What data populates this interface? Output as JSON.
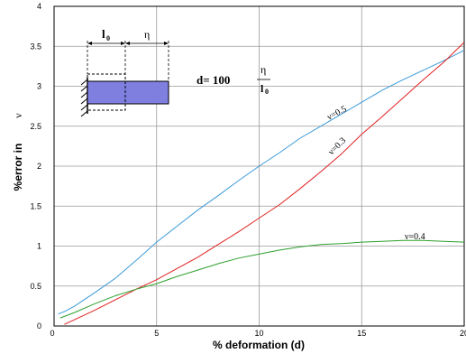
{
  "chart_data": {
    "type": "line",
    "xlabel": "% deformation (d)",
    "ylabel": "%error in",
    "ylabel_symbol": "ν",
    "xlim": [
      0,
      20
    ],
    "ylim": [
      0,
      4
    ],
    "x_ticks": [
      "0",
      "5",
      "10",
      "15",
      "20"
    ],
    "y_ticks": [
      "0",
      "0.5",
      "1",
      "1.5",
      "2",
      "2.5",
      "3",
      "3.5",
      "4"
    ],
    "grid": true,
    "series": [
      {
        "name": "ν=0.5",
        "color": "#3a9ad9",
        "x": [
          0.2,
          0.5,
          1,
          2,
          3,
          4,
          5,
          6,
          7,
          8,
          9,
          10,
          11,
          12,
          13,
          14,
          15,
          16,
          17,
          18,
          19,
          20
        ],
        "y": [
          0.15,
          0.18,
          0.25,
          0.42,
          0.6,
          0.82,
          1.05,
          1.25,
          1.45,
          1.63,
          1.82,
          2.0,
          2.17,
          2.35,
          2.5,
          2.65,
          2.8,
          2.95,
          3.08,
          3.2,
          3.32,
          3.45
        ]
      },
      {
        "name": "ν=0.3",
        "color": "#e02020",
        "x": [
          0.5,
          1,
          2,
          3,
          4,
          5,
          6,
          7,
          8,
          9,
          10,
          11,
          12,
          13,
          14,
          15,
          16,
          17,
          18,
          19,
          20
        ],
        "y": [
          0.02,
          0.08,
          0.2,
          0.33,
          0.46,
          0.58,
          0.72,
          0.86,
          1.02,
          1.18,
          1.35,
          1.52,
          1.72,
          1.93,
          2.15,
          2.4,
          2.62,
          2.85,
          3.08,
          3.3,
          3.55
        ]
      },
      {
        "name": "ν=0.4",
        "color": "#2ca02c",
        "x": [
          0.3,
          1,
          2,
          3,
          4,
          5,
          6,
          7,
          8,
          9,
          10,
          11,
          12,
          13,
          14,
          15,
          16,
          17,
          18,
          19,
          20
        ],
        "y": [
          0.1,
          0.17,
          0.28,
          0.38,
          0.46,
          0.53,
          0.62,
          0.7,
          0.78,
          0.85,
          0.9,
          0.95,
          0.99,
          1.02,
          1.03,
          1.05,
          1.06,
          1.07,
          1.07,
          1.06,
          1.05
        ]
      }
    ],
    "labels": {
      "nu05": "ν=0.5",
      "nu03": "ν=0.3",
      "nu04": "ν=0.4"
    },
    "inset": {
      "l0_label": "l",
      "l0_sub": "0",
      "eta_label": "η",
      "formula_prefix": "d= 100",
      "frac_num": "η",
      "frac_den": "l",
      "frac_den_sub": "0",
      "bar_color": "#7f7fe0"
    }
  }
}
